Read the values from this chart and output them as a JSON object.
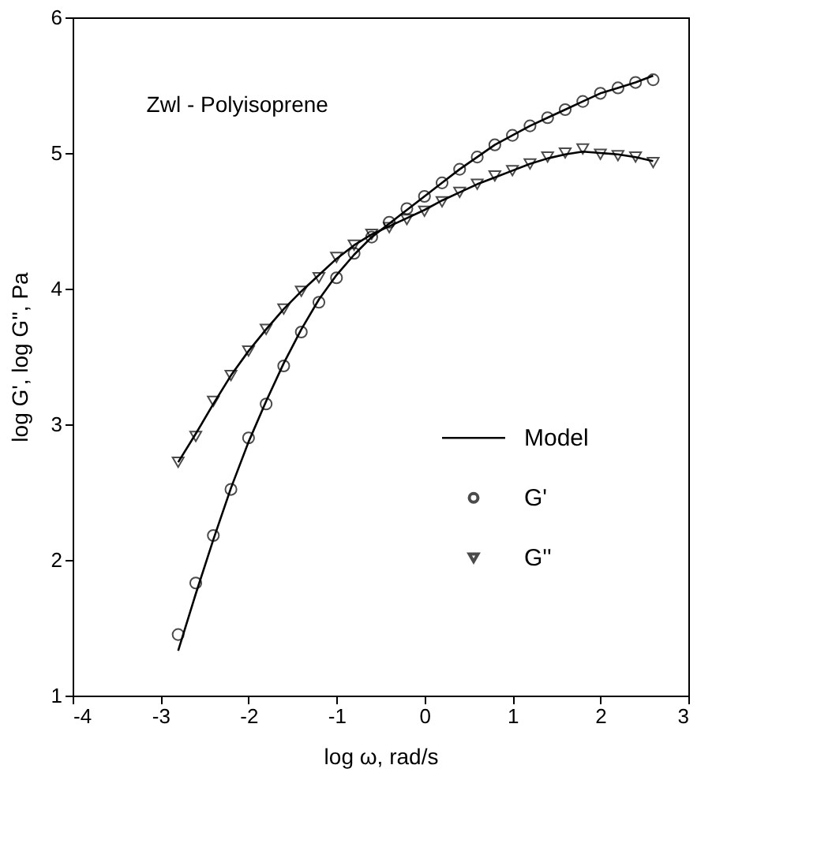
{
  "chart_data": {
    "type": "scatter",
    "xlabel": "log ω, rad/s",
    "ylabel": "log G', log G'', Pa",
    "annotations": [
      "Zwl - Polyisoprene"
    ],
    "xlim": [
      -4,
      3
    ],
    "xticks": [
      -4,
      -3,
      -2,
      -1,
      0,
      1,
      2,
      3
    ],
    "ylim": [
      1,
      6
    ],
    "yticks": [
      1,
      2,
      3,
      4,
      5,
      6
    ],
    "grid": false,
    "legend": "bottom right",
    "x": [
      -2.8,
      -2.6,
      -2.4,
      -2.2,
      -2.0,
      -1.8,
      -1.6,
      -1.4,
      -1.2,
      -1.0,
      -0.8,
      -0.6,
      -0.4,
      -0.2,
      0.0,
      0.2,
      0.4,
      0.6,
      0.8,
      1.0,
      1.2,
      1.4,
      1.6,
      1.8,
      2.0,
      2.2,
      2.4,
      2.6
    ],
    "series": [
      {
        "name": "Model",
        "type": "line",
        "line_style": "solid",
        "marker": "none",
        "color": "#000000",
        "values": [
          1.33,
          1.75,
          2.15,
          2.53,
          2.87,
          3.17,
          3.45,
          3.7,
          3.92,
          4.1,
          4.25,
          4.38,
          4.48,
          4.58,
          4.68,
          4.78,
          4.88,
          4.97,
          5.06,
          5.13,
          5.2,
          5.26,
          5.32,
          5.38,
          5.44,
          5.48,
          5.52,
          5.57
        ]
      },
      {
        "type": "line",
        "line_style": "solid",
        "marker": "none",
        "color": "#000000",
        "values": [
          2.72,
          2.93,
          3.15,
          3.36,
          3.54,
          3.7,
          3.85,
          3.98,
          4.1,
          4.22,
          4.32,
          4.4,
          4.46,
          4.52,
          4.58,
          4.65,
          4.71,
          4.77,
          4.82,
          4.87,
          4.92,
          4.96,
          4.99,
          5.01,
          5.0,
          4.99,
          4.97,
          4.94
        ]
      },
      {
        "name": "G'",
        "marker": "circle",
        "color": "#000000",
        "values": [
          1.45,
          1.83,
          2.18,
          2.52,
          2.9,
          3.15,
          3.43,
          3.68,
          3.9,
          4.08,
          4.26,
          4.38,
          4.49,
          4.59,
          4.68,
          4.78,
          4.88,
          4.97,
          5.06,
          5.13,
          5.2,
          5.26,
          5.32,
          5.38,
          5.44,
          5.48,
          5.52,
          5.54
        ]
      },
      {
        "name": "G''",
        "marker": "triangle",
        "color": "#000000",
        "values": [
          2.72,
          2.91,
          3.17,
          3.36,
          3.54,
          3.7,
          3.85,
          3.98,
          4.08,
          4.23,
          4.32,
          4.4,
          4.45,
          4.51,
          4.57,
          4.64,
          4.71,
          4.77,
          4.83,
          4.87,
          4.92,
          4.97,
          5.0,
          5.03,
          4.99,
          4.98,
          4.97,
          4.93
        ]
      }
    ]
  }
}
